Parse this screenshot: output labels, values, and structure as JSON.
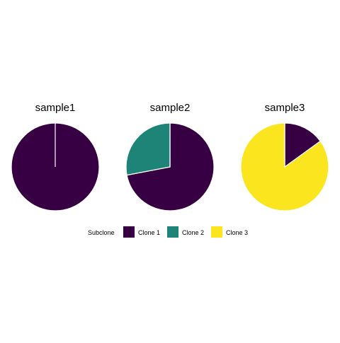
{
  "chart_data": {
    "type": "pie",
    "legend": {
      "title": "Subclone",
      "position": "bottom",
      "entries": [
        {
          "name": "Clone 1",
          "color": "#360043"
        },
        {
          "name": "Clone 2",
          "color": "#1E8478"
        },
        {
          "name": "Clone 3",
          "color": "#FBE51F"
        }
      ]
    },
    "categories": [
      "Clone 1",
      "Clone 2",
      "Clone 3"
    ],
    "panels": [
      {
        "title": "sample1",
        "values": [
          1.0,
          0.0,
          0.0
        ]
      },
      {
        "title": "sample2",
        "values": [
          0.72,
          0.28,
          0.0
        ]
      },
      {
        "title": "sample3",
        "values": [
          0.15,
          0.0,
          0.85
        ]
      }
    ],
    "slice_border_color": "#ffffff",
    "start_angle": "top",
    "direction": "clockwise"
  }
}
